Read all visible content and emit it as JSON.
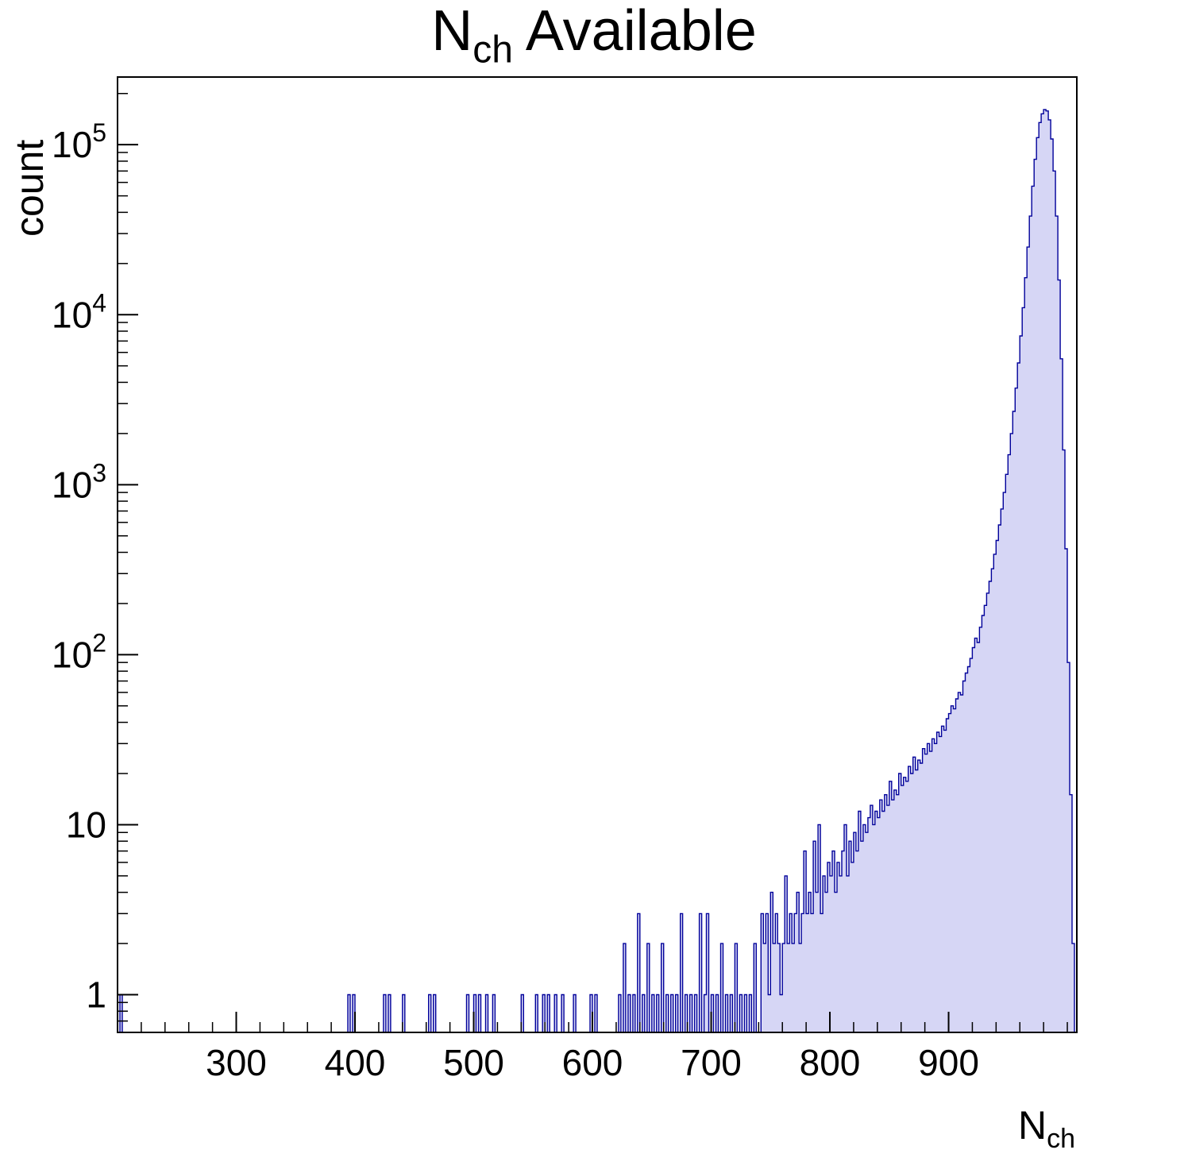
{
  "chart_data": {
    "type": "bar",
    "subtype": "histogram-log-y",
    "title_main": "N",
    "title_sub": "ch",
    "title_rest": " Available",
    "ylabel": "count",
    "xlabel_main": "N",
    "xlabel_sub": "ch",
    "xlim": [
      200,
      1008
    ],
    "ylim": [
      0.6,
      250000
    ],
    "yscale": "log",
    "grid": false,
    "legend": "none",
    "bin_width": 2,
    "fill_color": "#d6d6f5",
    "line_color": "#00009a",
    "frame_color": "#000000",
    "x_major_ticks": [
      300,
      400,
      500,
      600,
      700,
      800,
      900
    ],
    "x_minor_step": 20,
    "y_major_ticks": [
      {
        "value": 1,
        "text": "1"
      },
      {
        "value": 10,
        "text": "10"
      },
      {
        "value": 100,
        "text": "10",
        "sup": "2"
      },
      {
        "value": 1000,
        "text": "10",
        "sup": "3"
      },
      {
        "value": 10000,
        "text": "10",
        "sup": "4"
      },
      {
        "value": 100000,
        "text": "10",
        "sup": "5"
      }
    ],
    "bins": [
      [
        202,
        1
      ],
      [
        394,
        1
      ],
      [
        398,
        1
      ],
      [
        424,
        1
      ],
      [
        428,
        1
      ],
      [
        440,
        1
      ],
      [
        462,
        1
      ],
      [
        466,
        1
      ],
      [
        494,
        1
      ],
      [
        500,
        1
      ],
      [
        504,
        1
      ],
      [
        510,
        1
      ],
      [
        516,
        1
      ],
      [
        540,
        1
      ],
      [
        552,
        1
      ],
      [
        558,
        1
      ],
      [
        562,
        1
      ],
      [
        568,
        1
      ],
      [
        574,
        1
      ],
      [
        584,
        1
      ],
      [
        598,
        1
      ],
      [
        602,
        1
      ],
      [
        622,
        1
      ],
      [
        626,
        2
      ],
      [
        630,
        1
      ],
      [
        634,
        1
      ],
      [
        638,
        3
      ],
      [
        642,
        1
      ],
      [
        646,
        2
      ],
      [
        650,
        1
      ],
      [
        654,
        1
      ],
      [
        658,
        2
      ],
      [
        662,
        1
      ],
      [
        666,
        1
      ],
      [
        670,
        1
      ],
      [
        674,
        3
      ],
      [
        678,
        1
      ],
      [
        682,
        1
      ],
      [
        686,
        1
      ],
      [
        690,
        3
      ],
      [
        694,
        1
      ],
      [
        696,
        3
      ],
      [
        700,
        1
      ],
      [
        704,
        1
      ],
      [
        708,
        2
      ],
      [
        712,
        1
      ],
      [
        716,
        1
      ],
      [
        720,
        2
      ],
      [
        724,
        1
      ],
      [
        728,
        1
      ],
      [
        732,
        1
      ],
      [
        736,
        2
      ],
      [
        742,
        3
      ],
      [
        744,
        2
      ],
      [
        746,
        3
      ],
      [
        748,
        1
      ],
      [
        750,
        4
      ],
      [
        752,
        2
      ],
      [
        754,
        3
      ],
      [
        756,
        2
      ],
      [
        758,
        1
      ],
      [
        760,
        2
      ],
      [
        762,
        5
      ],
      [
        764,
        2
      ],
      [
        766,
        3
      ],
      [
        768,
        2
      ],
      [
        770,
        3
      ],
      [
        772,
        4
      ],
      [
        774,
        2
      ],
      [
        776,
        3
      ],
      [
        778,
        7
      ],
      [
        780,
        3
      ],
      [
        782,
        4
      ],
      [
        784,
        3
      ],
      [
        786,
        8
      ],
      [
        788,
        4
      ],
      [
        790,
        10
      ],
      [
        792,
        3
      ],
      [
        794,
        5
      ],
      [
        796,
        4
      ],
      [
        798,
        6
      ],
      [
        800,
        5
      ],
      [
        802,
        7
      ],
      [
        804,
        4
      ],
      [
        806,
        6
      ],
      [
        808,
        5
      ],
      [
        810,
        7
      ],
      [
        812,
        10
      ],
      [
        814,
        5
      ],
      [
        816,
        8
      ],
      [
        818,
        6
      ],
      [
        820,
        9
      ],
      [
        822,
        7
      ],
      [
        824,
        12
      ],
      [
        826,
        8
      ],
      [
        828,
        10
      ],
      [
        830,
        9
      ],
      [
        832,
        11
      ],
      [
        834,
        13
      ],
      [
        836,
        10
      ],
      [
        838,
        12
      ],
      [
        840,
        11
      ],
      [
        842,
        14
      ],
      [
        844,
        12
      ],
      [
        846,
        15
      ],
      [
        848,
        13
      ],
      [
        850,
        18
      ],
      [
        852,
        14
      ],
      [
        854,
        16
      ],
      [
        856,
        15
      ],
      [
        858,
        20
      ],
      [
        860,
        17
      ],
      [
        862,
        19
      ],
      [
        864,
        18
      ],
      [
        866,
        22
      ],
      [
        868,
        20
      ],
      [
        870,
        25
      ],
      [
        872,
        21
      ],
      [
        874,
        24
      ],
      [
        876,
        23
      ],
      [
        878,
        28
      ],
      [
        880,
        26
      ],
      [
        882,
        30
      ],
      [
        884,
        27
      ],
      [
        886,
        32
      ],
      [
        888,
        30
      ],
      [
        890,
        35
      ],
      [
        892,
        33
      ],
      [
        894,
        38
      ],
      [
        896,
        36
      ],
      [
        898,
        42
      ],
      [
        900,
        45
      ],
      [
        902,
        50
      ],
      [
        904,
        48
      ],
      [
        906,
        55
      ],
      [
        908,
        60
      ],
      [
        910,
        58
      ],
      [
        912,
        70
      ],
      [
        914,
        78
      ],
      [
        916,
        85
      ],
      [
        918,
        95
      ],
      [
        920,
        110
      ],
      [
        922,
        125
      ],
      [
        924,
        118
      ],
      [
        926,
        145
      ],
      [
        928,
        170
      ],
      [
        930,
        195
      ],
      [
        932,
        230
      ],
      [
        934,
        270
      ],
      [
        936,
        320
      ],
      [
        938,
        390
      ],
      [
        940,
        470
      ],
      [
        942,
        580
      ],
      [
        944,
        720
      ],
      [
        946,
        900
      ],
      [
        948,
        1150
      ],
      [
        950,
        1500
      ],
      [
        952,
        2000
      ],
      [
        954,
        2700
      ],
      [
        956,
        3700
      ],
      [
        958,
        5200
      ],
      [
        960,
        7500
      ],
      [
        962,
        11000
      ],
      [
        964,
        16500
      ],
      [
        966,
        25000
      ],
      [
        968,
        38000
      ],
      [
        970,
        57000
      ],
      [
        972,
        82000
      ],
      [
        974,
        110000
      ],
      [
        976,
        135000
      ],
      [
        978,
        152000
      ],
      [
        980,
        161000
      ],
      [
        982,
        158000
      ],
      [
        984,
        140000
      ],
      [
        986,
        108000
      ],
      [
        988,
        70000
      ],
      [
        990,
        38000
      ],
      [
        992,
        16000
      ],
      [
        994,
        5500
      ],
      [
        996,
        1600
      ],
      [
        998,
        420
      ],
      [
        1000,
        90
      ],
      [
        1002,
        15
      ],
      [
        1004,
        2
      ]
    ]
  }
}
